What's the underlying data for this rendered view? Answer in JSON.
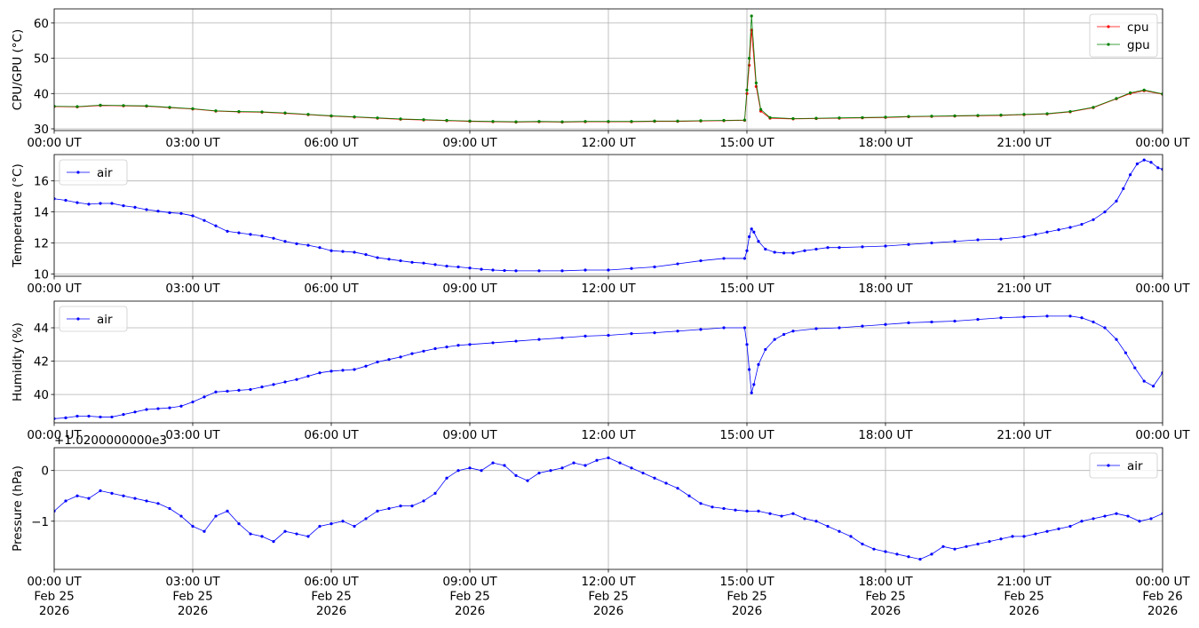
{
  "chart_data": [
    {
      "type": "line",
      "ylabel": "CPU/GPU (°C)",
      "ylim": [
        29.5,
        64
      ],
      "yticks": [
        30,
        40,
        50,
        60
      ],
      "ytick_labels": [
        "30",
        "40",
        "50",
        "60"
      ],
      "xlim": [
        "2026-02-25 00:00",
        "2026-02-26 00:00"
      ],
      "xtick_labels": [
        "00:00 UT",
        "03:00 UT",
        "06:00 UT",
        "09:00 UT",
        "12:00 UT",
        "15:00 UT",
        "18:00 UT",
        "21:00 UT",
        "00:00 UT"
      ],
      "grid": true,
      "legend": "upper right",
      "series": [
        {
          "name": "cpu",
          "color": "#ff0000",
          "x": [
            0,
            0.5,
            1,
            1.5,
            2,
            2.5,
            3,
            3.5,
            4,
            4.5,
            5,
            5.5,
            6,
            6.5,
            7,
            7.5,
            8,
            8.5,
            9,
            9.5,
            10,
            10.5,
            11,
            11.5,
            12,
            12.5,
            13,
            13.5,
            14,
            14.5,
            14.95,
            15.0,
            15.05,
            15.1,
            15.2,
            15.3,
            15.5,
            16,
            16.5,
            17,
            17.5,
            18,
            18.5,
            19,
            19.5,
            20,
            20.5,
            21,
            21.5,
            22,
            22.5,
            23,
            23.3,
            23.6,
            24
          ],
          "values": [
            36.3,
            36.2,
            36.6,
            36.5,
            36.4,
            36.0,
            35.6,
            35.0,
            34.8,
            34.7,
            34.4,
            34.0,
            33.6,
            33.3,
            33.0,
            32.7,
            32.5,
            32.3,
            32.1,
            32.0,
            31.9,
            32.0,
            31.9,
            32.0,
            32.0,
            32.0,
            32.1,
            32.1,
            32.2,
            32.3,
            32.4,
            40.0,
            48.0,
            58.0,
            42.0,
            35.0,
            33.0,
            32.8,
            32.9,
            33.0,
            33.1,
            33.2,
            33.4,
            33.5,
            33.6,
            33.7,
            33.8,
            34.0,
            34.2,
            34.8,
            36.0,
            38.5,
            40.0,
            40.8,
            39.8
          ]
        },
        {
          "name": "gpu",
          "color": "#008000",
          "x": [
            0,
            0.5,
            1,
            1.5,
            2,
            2.5,
            3,
            3.5,
            4,
            4.5,
            5,
            5.5,
            6,
            6.5,
            7,
            7.5,
            8,
            8.5,
            9,
            9.5,
            10,
            10.5,
            11,
            11.5,
            12,
            12.5,
            13,
            13.5,
            14,
            14.5,
            14.95,
            15.0,
            15.05,
            15.1,
            15.2,
            15.3,
            15.5,
            16,
            16.5,
            17,
            17.5,
            18,
            18.5,
            19,
            19.5,
            20,
            20.5,
            21,
            21.5,
            22,
            22.5,
            23,
            23.3,
            23.6,
            24
          ],
          "values": [
            36.4,
            36.3,
            36.7,
            36.6,
            36.5,
            36.1,
            35.7,
            35.1,
            34.9,
            34.8,
            34.5,
            34.1,
            33.7,
            33.4,
            33.1,
            32.8,
            32.6,
            32.4,
            32.2,
            32.1,
            32.0,
            32.1,
            32.0,
            32.1,
            32.1,
            32.1,
            32.2,
            32.2,
            32.3,
            32.4,
            32.5,
            41.0,
            50.0,
            62.0,
            43.0,
            35.5,
            33.2,
            32.9,
            33.0,
            33.1,
            33.2,
            33.3,
            33.5,
            33.6,
            33.7,
            33.8,
            33.9,
            34.1,
            34.3,
            34.9,
            36.1,
            38.6,
            40.2,
            41.0,
            39.9
          ]
        }
      ]
    },
    {
      "type": "line",
      "ylabel": "Temperature (°C)",
      "ylim": [
        9.85,
        17.7
      ],
      "yticks": [
        10,
        12,
        14,
        16
      ],
      "ytick_labels": [
        "10",
        "12",
        "14",
        "16"
      ],
      "xlim": [
        "2026-02-25 00:00",
        "2026-02-26 00:00"
      ],
      "xtick_labels": [
        "00:00 UT",
        "03:00 UT",
        "06:00 UT",
        "09:00 UT",
        "12:00 UT",
        "15:00 UT",
        "18:00 UT",
        "21:00 UT",
        "00:00 UT"
      ],
      "grid": true,
      "legend": "upper left",
      "series": [
        {
          "name": "air",
          "color": "#0000ff",
          "x": [
            0,
            0.25,
            0.5,
            0.75,
            1.0,
            1.25,
            1.5,
            1.75,
            2.0,
            2.25,
            2.5,
            2.75,
            3.0,
            3.25,
            3.5,
            3.75,
            4.0,
            4.25,
            4.5,
            4.75,
            5.0,
            5.25,
            5.5,
            5.75,
            6.0,
            6.25,
            6.5,
            6.75,
            7.0,
            7.25,
            7.5,
            7.75,
            8.0,
            8.25,
            8.5,
            8.75,
            9.0,
            9.25,
            9.5,
            9.75,
            10.0,
            10.5,
            11.0,
            11.5,
            12.0,
            12.5,
            13.0,
            13.5,
            14.0,
            14.5,
            14.95,
            15.0,
            15.05,
            15.1,
            15.15,
            15.25,
            15.4,
            15.6,
            15.8,
            16.0,
            16.25,
            16.5,
            16.75,
            17.0,
            17.5,
            18.0,
            18.5,
            19.0,
            19.5,
            20.0,
            20.5,
            21.0,
            21.25,
            21.5,
            21.75,
            22.0,
            22.25,
            22.5,
            22.75,
            23.0,
            23.15,
            23.3,
            23.45,
            23.6,
            23.75,
            23.9,
            24.0
          ],
          "values": [
            14.85,
            14.75,
            14.6,
            14.5,
            14.55,
            14.55,
            14.4,
            14.3,
            14.15,
            14.05,
            13.95,
            13.9,
            13.75,
            13.45,
            13.1,
            12.75,
            12.65,
            12.55,
            12.45,
            12.3,
            12.1,
            11.95,
            11.85,
            11.7,
            11.5,
            11.45,
            11.4,
            11.25,
            11.05,
            10.95,
            10.85,
            10.75,
            10.7,
            10.6,
            10.5,
            10.45,
            10.38,
            10.3,
            10.25,
            10.22,
            10.2,
            10.2,
            10.2,
            10.25,
            10.25,
            10.35,
            10.45,
            10.65,
            10.85,
            11.0,
            11.0,
            11.5,
            12.4,
            12.9,
            12.7,
            12.1,
            11.6,
            11.4,
            11.35,
            11.35,
            11.5,
            11.6,
            11.7,
            11.7,
            11.75,
            11.8,
            11.9,
            12.0,
            12.1,
            12.2,
            12.25,
            12.4,
            12.55,
            12.7,
            12.85,
            13.0,
            13.2,
            13.5,
            14.0,
            14.7,
            15.5,
            16.4,
            17.1,
            17.35,
            17.2,
            16.85,
            16.75
          ]
        }
      ]
    },
    {
      "type": "line",
      "ylabel": "Humidity (%)",
      "ylim": [
        38.3,
        45.6
      ],
      "yticks": [
        40,
        42,
        44
      ],
      "ytick_labels": [
        "40",
        "42",
        "44"
      ],
      "xlim": [
        "2026-02-25 00:00",
        "2026-02-26 00:00"
      ],
      "xtick_labels": [
        "00:00 UT",
        "03:00 UT",
        "06:00 UT",
        "09:00 UT",
        "12:00 UT",
        "15:00 UT",
        "18:00 UT",
        "21:00 UT",
        "00:00 UT"
      ],
      "grid": true,
      "legend": "upper left",
      "series": [
        {
          "name": "air",
          "color": "#0000ff",
          "x": [
            0,
            0.25,
            0.5,
            0.75,
            1.0,
            1.25,
            1.5,
            1.75,
            2.0,
            2.25,
            2.5,
            2.75,
            3.0,
            3.25,
            3.5,
            3.75,
            4.0,
            4.25,
            4.5,
            4.75,
            5.0,
            5.25,
            5.5,
            5.75,
            6.0,
            6.25,
            6.5,
            6.75,
            7.0,
            7.25,
            7.5,
            7.75,
            8.0,
            8.25,
            8.5,
            8.75,
            9.0,
            9.5,
            10.0,
            10.5,
            11.0,
            11.5,
            12.0,
            12.5,
            13.0,
            13.5,
            14.0,
            14.5,
            14.95,
            15.0,
            15.05,
            15.1,
            15.15,
            15.25,
            15.4,
            15.6,
            15.8,
            16.0,
            16.5,
            17.0,
            17.5,
            18.0,
            18.5,
            19.0,
            19.5,
            20.0,
            20.5,
            21.0,
            21.5,
            22.0,
            22.25,
            22.5,
            22.75,
            23.0,
            23.2,
            23.4,
            23.6,
            23.8,
            24.0
          ],
          "values": [
            38.55,
            38.6,
            38.7,
            38.7,
            38.65,
            38.65,
            38.8,
            38.95,
            39.1,
            39.15,
            39.2,
            39.3,
            39.55,
            39.85,
            40.15,
            40.2,
            40.25,
            40.3,
            40.45,
            40.6,
            40.75,
            40.9,
            41.1,
            41.3,
            41.4,
            41.45,
            41.5,
            41.7,
            41.95,
            42.1,
            42.25,
            42.45,
            42.6,
            42.75,
            42.85,
            42.95,
            43.0,
            43.1,
            43.2,
            43.3,
            43.4,
            43.5,
            43.55,
            43.65,
            43.7,
            43.8,
            43.9,
            44.0,
            44.0,
            43.0,
            41.5,
            40.1,
            40.6,
            41.8,
            42.7,
            43.3,
            43.6,
            43.8,
            43.95,
            44.0,
            44.1,
            44.2,
            44.3,
            44.35,
            44.4,
            44.5,
            44.6,
            44.65,
            44.7,
            44.7,
            44.6,
            44.35,
            44.0,
            43.3,
            42.5,
            41.6,
            40.8,
            40.5,
            41.3
          ]
        }
      ]
    },
    {
      "type": "line",
      "ylabel": "Pressure (hPa)",
      "offset_text": "+1.0200000000e3",
      "ylim": [
        -1.95,
        0.45
      ],
      "yticks": [
        -1,
        0
      ],
      "ytick_labels": [
        "−1",
        "0"
      ],
      "xlim": [
        "2026-02-25 00:00",
        "2026-02-26 00:00"
      ],
      "xtick_labels": [
        "00:00 UT\nFeb 25\n2026",
        "03:00 UT\nFeb 25\n2026",
        "06:00 UT\nFeb 25\n2026",
        "09:00 UT\nFeb 25\n2026",
        "12:00 UT\nFeb 25\n2026",
        "15:00 UT\nFeb 25\n2026",
        "18:00 UT\nFeb 25\n2026",
        "21:00 UT\nFeb 25\n2026",
        "00:00 UT\nFeb 26\n2026"
      ],
      "grid": true,
      "legend": "upper right",
      "series": [
        {
          "name": "air",
          "color": "#0000ff",
          "x": [
            0,
            0.25,
            0.5,
            0.75,
            1.0,
            1.25,
            1.5,
            1.75,
            2.0,
            2.25,
            2.5,
            2.75,
            3.0,
            3.25,
            3.5,
            3.75,
            4.0,
            4.25,
            4.5,
            4.75,
            5.0,
            5.25,
            5.5,
            5.75,
            6.0,
            6.25,
            6.5,
            6.75,
            7.0,
            7.25,
            7.5,
            7.75,
            8.0,
            8.25,
            8.5,
            8.75,
            9.0,
            9.25,
            9.5,
            9.75,
            10.0,
            10.25,
            10.5,
            10.75,
            11.0,
            11.25,
            11.5,
            11.75,
            12.0,
            12.25,
            12.5,
            12.75,
            13.0,
            13.25,
            13.5,
            13.75,
            14.0,
            14.25,
            14.5,
            14.75,
            15.0,
            15.25,
            15.5,
            15.75,
            16.0,
            16.25,
            16.5,
            16.75,
            17.0,
            17.25,
            17.5,
            17.75,
            18.0,
            18.25,
            18.5,
            18.75,
            19.0,
            19.25,
            19.5,
            19.75,
            20.0,
            20.25,
            20.5,
            20.75,
            21.0,
            21.25,
            21.5,
            21.75,
            22.0,
            22.25,
            22.5,
            22.75,
            23.0,
            23.25,
            23.5,
            23.75,
            24.0
          ],
          "values": [
            -0.8,
            -0.6,
            -0.5,
            -0.55,
            -0.4,
            -0.45,
            -0.5,
            -0.55,
            -0.6,
            -0.65,
            -0.75,
            -0.9,
            -1.1,
            -1.2,
            -0.9,
            -0.8,
            -1.05,
            -1.25,
            -1.3,
            -1.4,
            -1.2,
            -1.25,
            -1.3,
            -1.1,
            -1.05,
            -1.0,
            -1.1,
            -0.95,
            -0.8,
            -0.75,
            -0.7,
            -0.7,
            -0.6,
            -0.45,
            -0.15,
            0.0,
            0.05,
            0.0,
            0.15,
            0.1,
            -0.1,
            -0.2,
            -0.05,
            0.0,
            0.05,
            0.15,
            0.1,
            0.2,
            0.25,
            0.15,
            0.05,
            -0.05,
            -0.15,
            -0.25,
            -0.35,
            -0.5,
            -0.65,
            -0.72,
            -0.75,
            -0.78,
            -0.8,
            -0.8,
            -0.85,
            -0.9,
            -0.85,
            -0.95,
            -1.0,
            -1.1,
            -1.2,
            -1.3,
            -1.45,
            -1.55,
            -1.6,
            -1.65,
            -1.7,
            -1.75,
            -1.65,
            -1.5,
            -1.55,
            -1.5,
            -1.45,
            -1.4,
            -1.35,
            -1.3,
            -1.3,
            -1.25,
            -1.2,
            -1.15,
            -1.1,
            -1.0,
            -0.95,
            -0.9,
            -0.85,
            -0.9,
            -1.0,
            -0.95,
            -0.85
          ]
        }
      ]
    }
  ]
}
